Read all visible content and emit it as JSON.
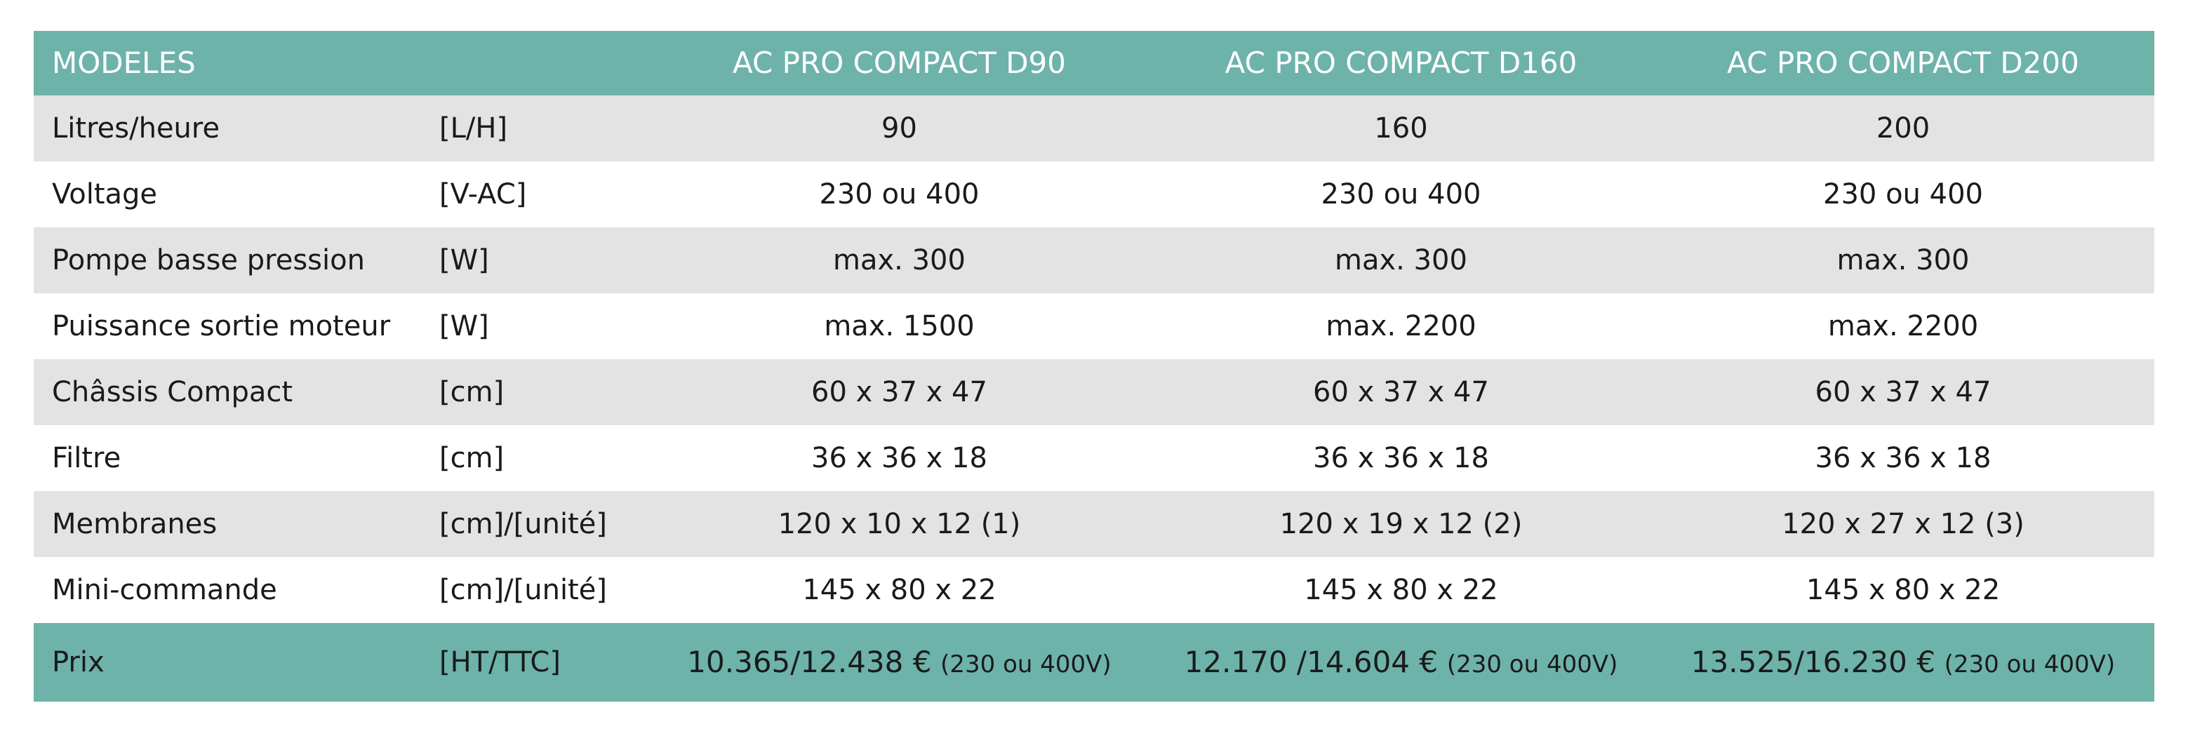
{
  "header": {
    "title": "MODELES",
    "unit": "",
    "models": [
      "AC PRO COMPACT D90",
      "AC PRO COMPACT D160",
      "AC PRO COMPACT D200"
    ]
  },
  "rows": [
    {
      "label": "Litres/heure",
      "unit": "[L/H]",
      "values": [
        "90",
        "160",
        "200"
      ]
    },
    {
      "label": "Voltage",
      "unit": "[V-AC]",
      "values": [
        "230 ou 400",
        "230 ou 400",
        "230 ou 400"
      ]
    },
    {
      "label": "Pompe basse pression",
      "unit": "[W]",
      "values": [
        "max. 300",
        "max. 300",
        "max. 300"
      ]
    },
    {
      "label": "Puissance sortie moteur",
      "unit": "[W]",
      "values": [
        "max. 1500",
        "max. 2200",
        "max. 2200"
      ]
    },
    {
      "label": "Châssis Compact",
      "unit": "[cm]",
      "values": [
        "60 x 37 x 47",
        "60 x 37 x 47",
        "60 x 37 x 47"
      ]
    },
    {
      "label": "Filtre",
      "unit": "[cm]",
      "values": [
        "36 x 36 x 18",
        "36 x 36 x 18",
        "36 x 36 x 18"
      ]
    },
    {
      "label": "Membranes",
      "unit": "[cm]/[unité]",
      "values": [
        "120 x 10 x 12 (1)",
        "120 x 19 x 12 (2)",
        "120 x 27 x 12 (3)"
      ]
    },
    {
      "label": "Mini-commande",
      "unit": "[cm]/[unité]",
      "values": [
        "145 x 80 x 22",
        "145 x 80 x 22",
        "145 x 80 x 22"
      ]
    }
  ],
  "price": {
    "label": "Prix",
    "unit": "[HT/TTC]",
    "values": [
      {
        "amount": "10.365/12.438 €",
        "note": "(230 ou 400V)"
      },
      {
        "amount": "12.170 /14.604 €",
        "note": "(230 ou 400V)"
      },
      {
        "amount": "13.525/16.230 €",
        "note": "(230 ou 400V)"
      }
    ]
  },
  "colors": {
    "header_bg": "#6db3aa",
    "header_text": "#ffffff",
    "row_shade": "#e3e3e3",
    "row_plain": "#ffffff"
  }
}
